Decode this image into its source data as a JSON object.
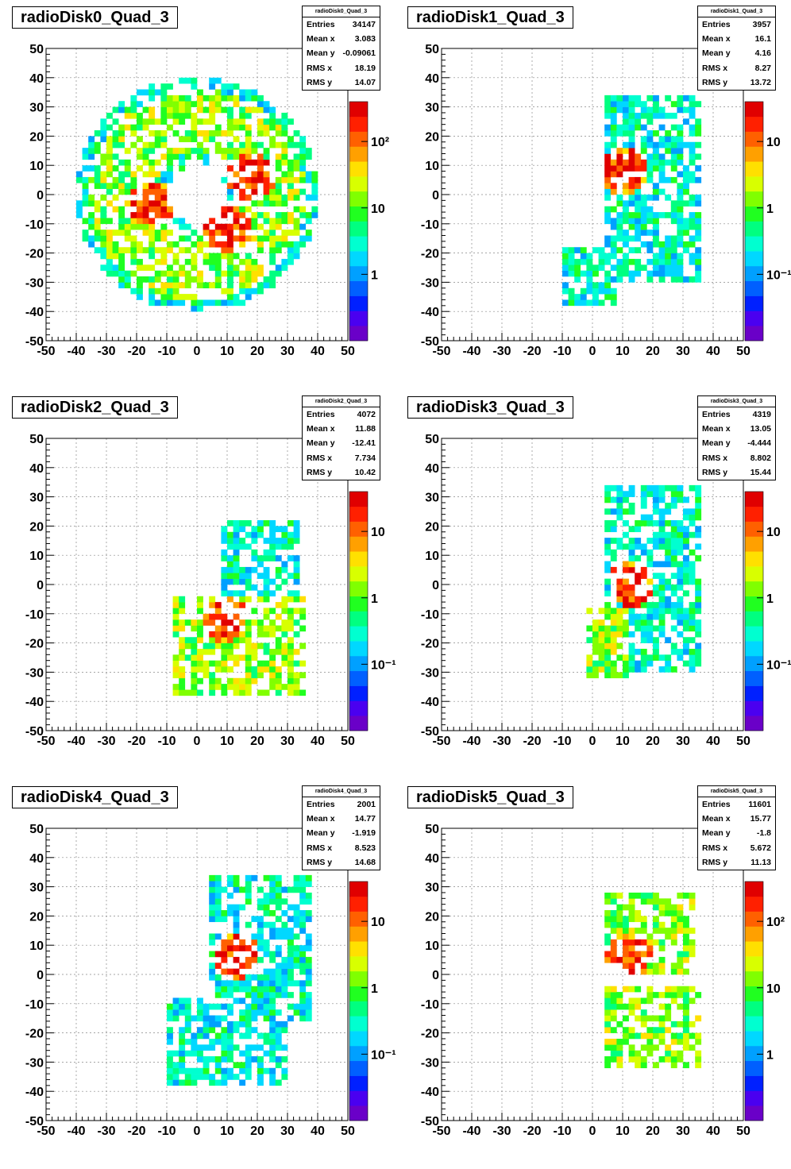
{
  "chart_data": [
    {
      "type": "heatmap",
      "title": "radioDisk0_Quad_3",
      "x_ticks": [
        "-50",
        "-40",
        "-30",
        "-20",
        "-10",
        "0",
        "10",
        "20",
        "30",
        "40",
        "50"
      ],
      "y_ticks": [
        "-50",
        "-40",
        "-30",
        "-20",
        "-10",
        "0",
        "10",
        "20",
        "30",
        "40",
        "50"
      ],
      "xlim": [
        -50,
        50
      ],
      "ylim": [
        -50,
        50
      ],
      "color_scale": "log",
      "color_ticks": [
        "1",
        "10",
        "10²"
      ],
      "grid": true,
      "stats": {
        "title": "radioDisk0_Quad_3",
        "entries": "34147",
        "mean_x": "3.083",
        "mean_y": "-0.09061",
        "rms_x": "18.19",
        "rms_y": "14.07"
      },
      "regions": [
        {
          "shape": "annulus",
          "cx": 0,
          "cy": 0,
          "r_inner": 10,
          "r_outer": 40,
          "level": "medium"
        },
        {
          "shape": "blob",
          "x": -15,
          "y": -3,
          "level": "high"
        },
        {
          "shape": "blob",
          "x": 18,
          "y": 6,
          "level": "high"
        },
        {
          "shape": "blob",
          "x": 10,
          "y": -12,
          "level": "high"
        }
      ]
    },
    {
      "type": "heatmap",
      "title": "radioDisk1_Quad_3",
      "x_ticks": [
        "-50",
        "-40",
        "-30",
        "-20",
        "-10",
        "0",
        "10",
        "20",
        "30",
        "40",
        "50"
      ],
      "y_ticks": [
        "-50",
        "-40",
        "-30",
        "-20",
        "-10",
        "0",
        "10",
        "20",
        "30",
        "40",
        "50"
      ],
      "xlim": [
        -50,
        50
      ],
      "ylim": [
        -50,
        50
      ],
      "color_scale": "log",
      "color_ticks": [
        "10⁻¹",
        "1",
        "10"
      ],
      "grid": true,
      "stats": {
        "title": "radioDisk1_Quad_3",
        "entries": "3957",
        "mean_x": "16.1",
        "mean_y": "4.16",
        "rms_x": "8.27",
        "rms_y": "13.72"
      },
      "regions": [
        {
          "shape": "box",
          "x0": 5,
          "x1": 35,
          "y0": -30,
          "y1": 33,
          "level": "low"
        },
        {
          "shape": "box",
          "x0": -10,
          "x1": 7,
          "y0": -37,
          "y1": -18,
          "level": "low"
        },
        {
          "shape": "blob",
          "x": 10,
          "y": 8,
          "level": "high"
        }
      ]
    },
    {
      "type": "heatmap",
      "title": "radioDisk2_Quad_3",
      "x_ticks": [
        "-50",
        "-40",
        "-30",
        "-20",
        "-10",
        "0",
        "10",
        "20",
        "30",
        "40",
        "50"
      ],
      "y_ticks": [
        "-50",
        "-40",
        "-30",
        "-20",
        "-10",
        "0",
        "10",
        "20",
        "30",
        "40",
        "50"
      ],
      "xlim": [
        -50,
        50
      ],
      "ylim": [
        -50,
        50
      ],
      "color_scale": "log",
      "color_ticks": [
        "10⁻¹",
        "1",
        "10"
      ],
      "grid": true,
      "stats": {
        "title": "radioDisk2_Quad_3",
        "entries": "4072",
        "mean_x": "11.88",
        "mean_y": "-12.41",
        "rms_x": "7.734",
        "rms_y": "10.42"
      },
      "regions": [
        {
          "shape": "box",
          "x0": 8,
          "x1": 33,
          "y0": -5,
          "y1": 22,
          "level": "low"
        },
        {
          "shape": "box",
          "x0": -7,
          "x1": 35,
          "y0": -37,
          "y1": -5,
          "level": "medium"
        },
        {
          "shape": "blob",
          "x": 9,
          "y": -12,
          "level": "high"
        }
      ]
    },
    {
      "type": "heatmap",
      "title": "radioDisk3_Quad_3",
      "x_ticks": [
        "-50",
        "-40",
        "-30",
        "-20",
        "-10",
        "0",
        "10",
        "20",
        "30",
        "40",
        "50"
      ],
      "y_ticks": [
        "-50",
        "-40",
        "-30",
        "-20",
        "-10",
        "0",
        "10",
        "20",
        "30",
        "40",
        "50"
      ],
      "xlim": [
        -50,
        50
      ],
      "ylim": [
        -50,
        50
      ],
      "color_scale": "log",
      "color_ticks": [
        "10⁻¹",
        "1",
        "10"
      ],
      "grid": true,
      "stats": {
        "title": "radioDisk3_Quad_3",
        "entries": "4319",
        "mean_x": "13.05",
        "mean_y": "-4.444",
        "rms_x": "8.802",
        "rms_y": "15.44"
      },
      "regions": [
        {
          "shape": "box",
          "x0": 5,
          "x1": 35,
          "y0": -30,
          "y1": 33,
          "level": "low"
        },
        {
          "shape": "box",
          "x0": -2,
          "x1": 12,
          "y0": -32,
          "y1": -8,
          "level": "medium"
        },
        {
          "shape": "blob",
          "x": 13,
          "y": 0,
          "level": "high"
        }
      ]
    },
    {
      "type": "heatmap",
      "title": "radioDisk4_Quad_3",
      "x_ticks": [
        "-50",
        "-40",
        "-30",
        "-20",
        "-10",
        "0",
        "10",
        "20",
        "30",
        "40",
        "50"
      ],
      "y_ticks": [
        "-50",
        "-40",
        "-30",
        "-20",
        "-10",
        "0",
        "10",
        "20",
        "30",
        "40",
        "50"
      ],
      "xlim": [
        -50,
        50
      ],
      "ylim": [
        -50,
        50
      ],
      "color_scale": "log",
      "color_ticks": [
        "10⁻¹",
        "1",
        "10"
      ],
      "grid": true,
      "stats": {
        "title": "radioDisk4_Quad_3",
        "entries": "2001",
        "mean_x": "14.77",
        "mean_y": "-1.919",
        "rms_x": "8.523",
        "rms_y": "14.68"
      },
      "regions": [
        {
          "shape": "box",
          "x0": 5,
          "x1": 37,
          "y0": -15,
          "y1": 33,
          "level": "low"
        },
        {
          "shape": "box",
          "x0": -10,
          "x1": 30,
          "y0": -37,
          "y1": -8,
          "level": "low"
        },
        {
          "shape": "blob",
          "x": 13,
          "y": 6,
          "level": "high"
        }
      ]
    },
    {
      "type": "heatmap",
      "title": "radioDisk5_Quad_3",
      "x_ticks": [
        "-50",
        "-40",
        "-30",
        "-20",
        "-10",
        "0",
        "10",
        "20",
        "30",
        "40",
        "50"
      ],
      "y_ticks": [
        "-50",
        "-40",
        "-30",
        "-20",
        "-10",
        "0",
        "10",
        "20",
        "30",
        "40",
        "50"
      ],
      "xlim": [
        -50,
        50
      ],
      "ylim": [
        -50,
        50
      ],
      "color_scale": "log",
      "color_ticks": [
        "1",
        "10",
        "10²"
      ],
      "grid": true,
      "stats": {
        "title": "radioDisk5_Quad_3",
        "entries": "11601",
        "mean_x": "15.77",
        "mean_y": "-1.8",
        "rms_x": "5.672",
        "rms_y": "11.13"
      },
      "regions": [
        {
          "shape": "box",
          "x0": 5,
          "x1": 33,
          "y0": 0,
          "y1": 28,
          "level": "medium"
        },
        {
          "shape": "box",
          "x0": 5,
          "x1": 35,
          "y0": -32,
          "y1": -5,
          "level": "medium"
        },
        {
          "shape": "blob",
          "x": 12,
          "y": 7,
          "level": "high"
        }
      ]
    }
  ],
  "palette": [
    "#6a00c8",
    "#4a00f0",
    "#0020ff",
    "#0060ff",
    "#00a0ff",
    "#00d8ff",
    "#00ffd0",
    "#00ff80",
    "#20ff20",
    "#80ff00",
    "#d8ff00",
    "#ffe000",
    "#ffa000",
    "#ff6000",
    "#ff2000",
    "#e00000"
  ]
}
